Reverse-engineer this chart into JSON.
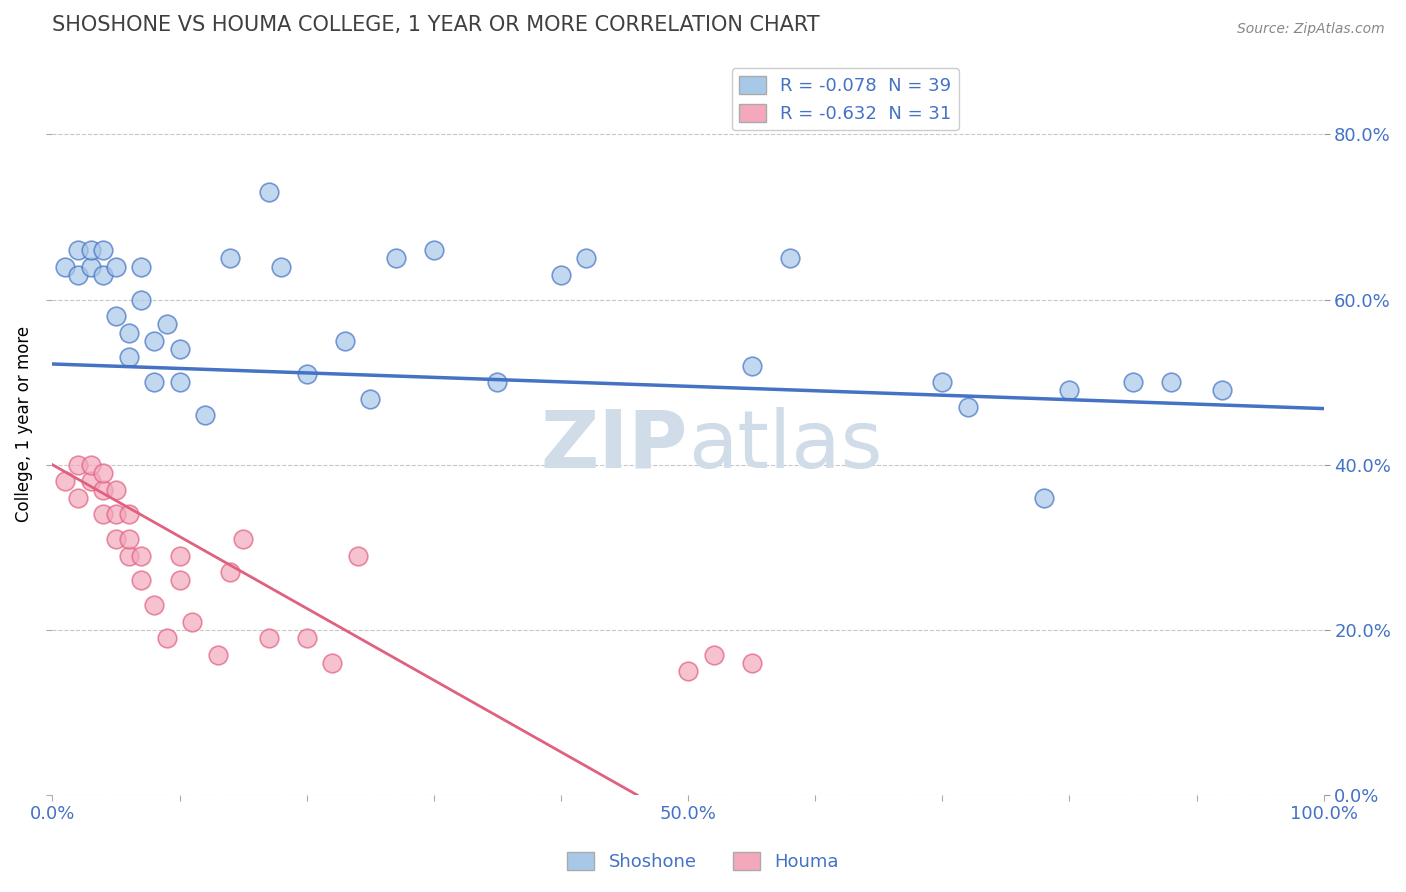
{
  "title": "SHOSHONE VS HOUMA COLLEGE, 1 YEAR OR MORE CORRELATION CHART",
  "source_text": "Source: ZipAtlas.com",
  "ylabel": "College, 1 year or more",
  "xlim": [
    0.0,
    1.0
  ],
  "ylim": [
    0.0,
    0.9
  ],
  "xticks": [
    0.0,
    0.1,
    0.2,
    0.3,
    0.4,
    0.5,
    0.6,
    0.7,
    0.8,
    0.9,
    1.0
  ],
  "yticks": [
    0.0,
    0.2,
    0.4,
    0.6,
    0.8
  ],
  "ytick_labels": [
    "0.0%",
    "20.0%",
    "40.0%",
    "60.0%",
    "80.0%"
  ],
  "xtick_labels": [
    "0.0%",
    "",
    "",
    "",
    "",
    "50.0%",
    "",
    "",
    "",
    "",
    "100.0%"
  ],
  "legend_shoshone_R": "-0.078",
  "legend_shoshone_N": "39",
  "legend_houma_R": "-0.632",
  "legend_houma_N": "31",
  "shoshone_color": "#a8c8e8",
  "houma_color": "#f4a8bc",
  "shoshone_line_color": "#4472c4",
  "houma_line_color": "#e06080",
  "background_color": "#ffffff",
  "grid_color": "#c8c8c8",
  "title_color": "#404040",
  "axis_label_color": "#4472c4",
  "legend_text_color": "#4472c4",
  "watermark_color": "#d0dce8",
  "shoshone_x": [
    0.01,
    0.02,
    0.02,
    0.03,
    0.03,
    0.04,
    0.04,
    0.05,
    0.05,
    0.06,
    0.06,
    0.07,
    0.07,
    0.08,
    0.08,
    0.09,
    0.1,
    0.1,
    0.12,
    0.14,
    0.17,
    0.18,
    0.2,
    0.23,
    0.25,
    0.27,
    0.3,
    0.35,
    0.4,
    0.42,
    0.55,
    0.58,
    0.7,
    0.72,
    0.78,
    0.8,
    0.85,
    0.88,
    0.92
  ],
  "shoshone_y": [
    0.64,
    0.63,
    0.66,
    0.64,
    0.66,
    0.63,
    0.66,
    0.58,
    0.64,
    0.53,
    0.56,
    0.6,
    0.64,
    0.5,
    0.55,
    0.57,
    0.5,
    0.54,
    0.46,
    0.65,
    0.73,
    0.64,
    0.51,
    0.55,
    0.48,
    0.65,
    0.66,
    0.5,
    0.63,
    0.65,
    0.52,
    0.65,
    0.5,
    0.47,
    0.36,
    0.49,
    0.5,
    0.5,
    0.49
  ],
  "houma_x": [
    0.01,
    0.02,
    0.02,
    0.03,
    0.03,
    0.04,
    0.04,
    0.04,
    0.05,
    0.05,
    0.05,
    0.06,
    0.06,
    0.06,
    0.07,
    0.07,
    0.08,
    0.09,
    0.1,
    0.1,
    0.11,
    0.13,
    0.14,
    0.15,
    0.17,
    0.2,
    0.22,
    0.24,
    0.5,
    0.52,
    0.55
  ],
  "houma_y": [
    0.38,
    0.36,
    0.4,
    0.38,
    0.4,
    0.34,
    0.37,
    0.39,
    0.31,
    0.34,
    0.37,
    0.29,
    0.31,
    0.34,
    0.26,
    0.29,
    0.23,
    0.19,
    0.26,
    0.29,
    0.21,
    0.17,
    0.27,
    0.31,
    0.19,
    0.19,
    0.16,
    0.29,
    0.15,
    0.17,
    0.16
  ],
  "shoshone_line_x": [
    0.0,
    1.0
  ],
  "shoshone_line_y": [
    0.522,
    0.468
  ],
  "houma_line_x": [
    0.0,
    0.46
  ],
  "houma_line_y": [
    0.4,
    0.0
  ]
}
